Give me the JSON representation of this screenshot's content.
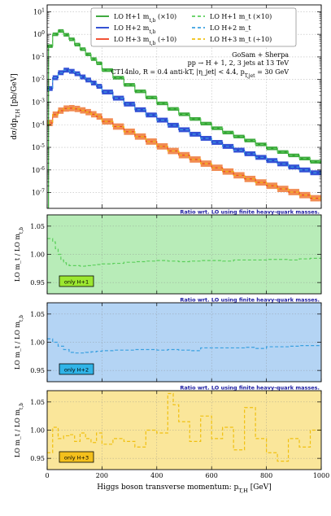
{
  "chart_data": {
    "type": "histogram",
    "xlim": [
      0,
      1000
    ],
    "xticks": [
      0,
      200,
      400,
      600,
      800,
      1000
    ],
    "xlabel": "Higgs boson transverse momentum: p_{T,H} [GeV]",
    "colors": {
      "h1": "#2aa02a",
      "h2": "#1f3fd0",
      "h3": "#f04020",
      "h1_dash": "#5ccf5c",
      "h2_dash": "#3aa0e0",
      "h3_dash": "#f0c010",
      "h3_band": "#f08040"
    },
    "main_panel": {
      "ylabel": "dσ/dp_{T,H} [pb/GeV]",
      "yscale": "log",
      "ylim": [
        2e-08,
        20
      ],
      "ytick_labels": [
        "10^{-7}",
        "10^{-6}",
        "10^{-5}",
        "10^{-4}",
        "10^{-3}",
        "10^{-2}",
        "10^{-1}",
        "10^{0}",
        "10^{1}"
      ],
      "annotations": [
        "GoSam + Sherpa",
        "pp → H + 1, 2, 3 jets at 13 TeV",
        "CT14nlo, R = 0.4 anti-kT, |η_jet| < 4.4, p_{T,jet} = 30 GeV"
      ],
      "legend": [
        "LO H+1 m_{t,b} (×10)",
        "LO H+1 m_t (×10)",
        "LO H+2 m_{t,b}",
        "LO H+2 m_t",
        "LO H+3 m_{t,b} (÷10)",
        "LO H+3 m_t (÷10)"
      ],
      "bin_edges": [
        0,
        20,
        40,
        60,
        80,
        100,
        120,
        140,
        160,
        180,
        200,
        240,
        280,
        320,
        360,
        400,
        440,
        480,
        520,
        560,
        600,
        640,
        680,
        720,
        760,
        800,
        840,
        880,
        920,
        960,
        1000
      ],
      "series": [
        {
          "name": "LO H+1 m_{t,b} (×10)",
          "values": [
            0.3,
            1.0,
            1.4,
            0.95,
            0.6,
            0.35,
            0.22,
            0.13,
            0.08,
            0.052,
            0.026,
            0.012,
            0.0058,
            0.003,
            0.0016,
            0.00088,
            0.0005,
            0.00029,
            0.00018,
            0.000112,
            7e-05,
            4.5e-05,
            3e-05,
            2e-05,
            1.35e-05,
            9e-06,
            6.2e-06,
            4.4e-06,
            3.2e-06,
            2.3e-06
          ],
          "band": 0.2
        },
        {
          "name": "LO H+2 m_{t,b}",
          "values": [
            0.004,
            0.012,
            0.02,
            0.026,
            0.023,
            0.018,
            0.013,
            0.0095,
            0.007,
            0.005,
            0.0028,
            0.0015,
            0.00082,
            0.00046,
            0.00027,
            0.00016,
            9.5e-05,
            6e-05,
            3.8e-05,
            2.5e-05,
            1.65e-05,
            1.1e-05,
            7.5e-06,
            5.2e-06,
            3.6e-06,
            2.6e-06,
            1.85e-06,
            1.35e-06,
            1e-06,
            7.5e-07
          ],
          "band": 0.28
        },
        {
          "name": "LO H+3 m_{t,b} (÷10)",
          "values": [
            0.00012,
            0.00028,
            0.00042,
            0.00052,
            0.00054,
            0.0005,
            0.00043,
            0.00036,
            0.00029,
            0.00023,
            0.00014,
            8.3e-05,
            4.9e-05,
            3e-05,
            1.8e-05,
            1.1e-05,
            6.9e-06,
            4.5e-06,
            2.9e-06,
            1.9e-06,
            1.25e-06,
            8.5e-07,
            5.8e-07,
            4e-07,
            2.8e-07,
            2e-07,
            1.45e-07,
            1.05e-07,
            7.7e-08,
            5.6e-08
          ],
          "band": 0.38
        }
      ]
    },
    "ratio_panels": [
      {
        "header": "Ratio wrt. LO using finite heavy-quark masses.",
        "ylabel": "LO m_t / LO m_{t,b}",
        "ylim": [
          0.93,
          1.07
        ],
        "yticks": [
          0.95,
          1.0,
          1.05
        ],
        "ytick_labels": [
          "0.95",
          "1.00",
          "1.05"
        ],
        "badge": "only H+1",
        "band_color": "#b8ecb8",
        "badge_color": "#9ce830",
        "x": [
          0,
          20,
          30,
          40,
          50,
          60,
          70,
          80,
          100,
          120,
          140,
          160,
          180,
          200,
          240,
          280,
          320,
          360,
          400,
          440,
          480,
          520,
          560,
          600,
          640,
          680,
          720,
          760,
          800,
          840,
          880,
          920,
          960,
          1000
        ],
        "values": [
          1.028,
          1.022,
          1.01,
          1.0,
          0.99,
          0.985,
          0.982,
          0.98,
          0.98,
          0.979,
          0.98,
          0.981,
          0.982,
          0.983,
          0.984,
          0.986,
          0.987,
          0.988,
          0.989,
          0.988,
          0.987,
          0.988,
          0.989,
          0.989,
          0.988,
          0.99,
          0.99,
          0.99,
          0.991,
          0.991,
          0.99,
          0.992,
          0.993,
          0.996
        ]
      },
      {
        "header": "Ratio wrt. LO using finite heavy-quark masses.",
        "ylabel": "LO m_t / LO m_{t,b}",
        "ylim": [
          0.93,
          1.07
        ],
        "yticks": [
          0.95,
          1.0,
          1.05
        ],
        "ytick_labels": [
          "0.95",
          "1.00",
          "1.05"
        ],
        "badge": "only H+2",
        "band_color": "#b4d4f4",
        "badge_color": "#30b4e8",
        "x": [
          0,
          20,
          40,
          60,
          80,
          100,
          120,
          140,
          160,
          180,
          200,
          240,
          280,
          320,
          360,
          400,
          440,
          480,
          520,
          560,
          600,
          640,
          680,
          720,
          760,
          800,
          840,
          880,
          920,
          960,
          1000
        ],
        "values": [
          1.006,
          1.0,
          0.993,
          0.987,
          0.982,
          0.981,
          0.981,
          0.982,
          0.983,
          0.984,
          0.985,
          0.986,
          0.986,
          0.987,
          0.987,
          0.986,
          0.987,
          0.986,
          0.985,
          0.99,
          0.99,
          0.99,
          0.99,
          0.991,
          0.989,
          0.992,
          0.992,
          0.993,
          0.994,
          0.994,
          0.994
        ]
      },
      {
        "header": "Ratio wrt. LO using finite heavy-quark masses.",
        "ylabel": "LO m_t / LO m_{t,b}",
        "ylim": [
          0.93,
          1.07
        ],
        "yticks": [
          0.95,
          1.0,
          1.05
        ],
        "ytick_labels": [
          "0.95",
          "1.00",
          "1.05"
        ],
        "badge": "only H+3",
        "band_color": "#fae69a",
        "badge_color": "#f4c01c",
        "x": [
          0,
          20,
          40,
          60,
          80,
          100,
          120,
          140,
          160,
          180,
          200,
          240,
          280,
          320,
          360,
          400,
          440,
          460,
          480,
          520,
          560,
          600,
          640,
          680,
          720,
          760,
          800,
          840,
          880,
          920,
          960,
          1000
        ],
        "values": [
          0.96,
          1.005,
          0.985,
          0.99,
          0.992,
          0.98,
          0.995,
          0.985,
          0.978,
          0.995,
          0.975,
          0.985,
          0.98,
          0.97,
          1.0,
          0.995,
          1.065,
          1.045,
          1.015,
          0.98,
          1.025,
          0.985,
          1.005,
          0.965,
          1.04,
          0.985,
          0.96,
          0.945,
          0.985,
          0.97,
          1.0,
          0.995
        ]
      }
    ]
  }
}
